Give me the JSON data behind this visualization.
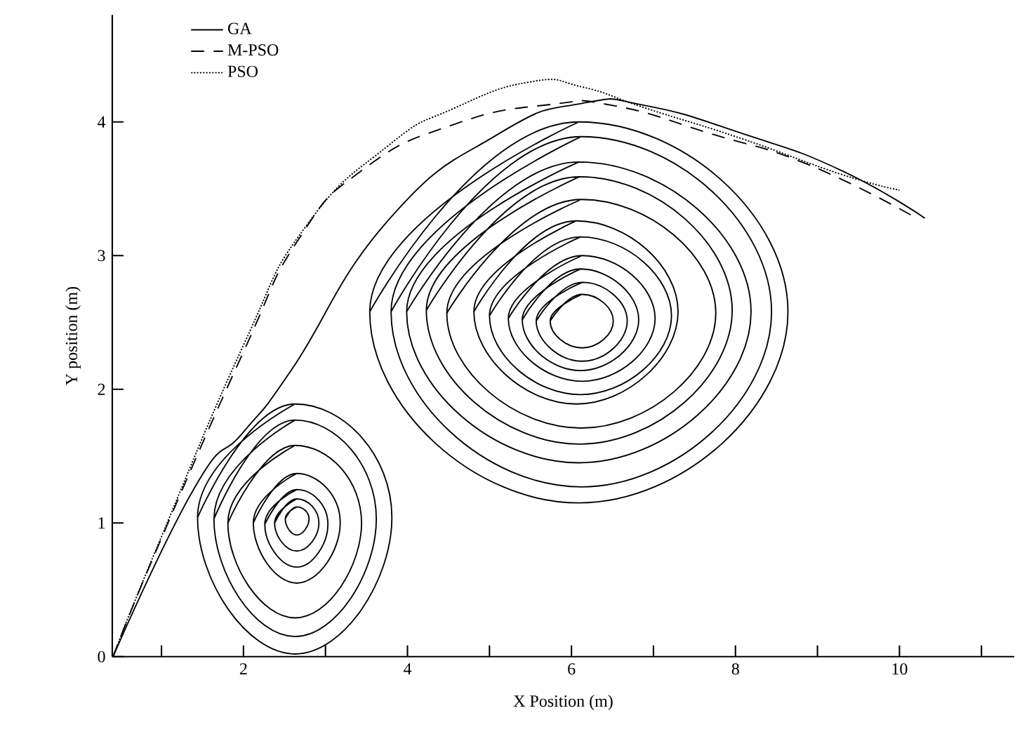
{
  "chart_data": {
    "type": "line",
    "xlabel": "X Position (m)",
    "ylabel": "Y position (m)",
    "xlim": [
      0.4,
      11.4
    ],
    "ylim": [
      0,
      4.8
    ],
    "xticks": [
      {
        "value": 1,
        "label": null
      },
      2,
      {
        "value": 3,
        "label": null
      },
      4,
      {
        "value": 5,
        "label": null
      },
      6,
      {
        "value": 7,
        "label": null
      },
      8,
      {
        "value": 9,
        "label": null
      },
      10,
      {
        "value": 11,
        "label": null
      }
    ],
    "yticks": [
      0,
      1,
      2,
      3,
      4
    ],
    "legend": "top left",
    "marker": "none",
    "grid": false,
    "series": [
      {
        "name": "GA",
        "color": "#000000",
        "line_style": "solid",
        "x": [
          0.41,
          1.4,
          2.0,
          2.58,
          3.76,
          5.11,
          6.14,
          6.92,
          8.1,
          9.28,
          10.31
        ],
        "values": [
          0,
          1.26,
          1.68,
          2.14,
          3.26,
          3.91,
          4.14,
          4.12,
          3.91,
          3.64,
          3.28
        ]
      },
      {
        "name": "M-PSO",
        "color": "#000000",
        "line_style": "dashed",
        "x": [
          0.41,
          0.94,
          2.0,
          2.67,
          3.45,
          4.56,
          5.74,
          6.53,
          7.71,
          8.89,
          10.15
        ],
        "values": [
          0,
          0.8,
          2.28,
          3.12,
          3.64,
          3.98,
          4.13,
          4.12,
          3.91,
          3.68,
          3.3
        ]
      },
      {
        "name": "PSO",
        "color": "#000000",
        "line_style": "dotted",
        "x": [
          0.41,
          0.94,
          2.0,
          2.75,
          3.76,
          4.56,
          5.5,
          6.14,
          6.92,
          8.1,
          9.28,
          10.0
        ],
        "values": [
          0,
          0.81,
          2.33,
          3.21,
          3.82,
          4.1,
          4.3,
          4.26,
          4.1,
          3.87,
          3.61,
          3.49
        ]
      },
      {
        "color": "#000000",
        "line_style": "solid",
        "x": [
          1.44,
          2.63,
          3.81,
          2.63,
          1.44,
          2.63
        ],
        "values": [
          1.04,
          1.89,
          1.04,
          0.02,
          1.04,
          1.89
        ]
      },
      {
        "color": "#000000",
        "line_style": "solid",
        "x": [
          1.64,
          2.63,
          3.62,
          2.63,
          1.64,
          2.63
        ],
        "values": [
          1.03,
          1.77,
          1.03,
          0.15,
          1.03,
          1.77
        ]
      },
      {
        "color": "#000000",
        "line_style": "solid",
        "x": [
          1.81,
          2.63,
          3.44,
          2.63,
          1.81,
          2.63
        ],
        "values": [
          1.0,
          1.58,
          1.0,
          0.29,
          1.0,
          1.58
        ]
      },
      {
        "color": "#000000",
        "line_style": "solid",
        "x": [
          2.12,
          2.65,
          3.18,
          2.65,
          2.12,
          2.65
        ],
        "values": [
          1.0,
          1.37,
          1.0,
          0.55,
          1.0,
          1.37
        ]
      },
      {
        "color": "#000000",
        "line_style": "solid",
        "x": [
          2.26,
          2.65,
          3.03,
          2.65,
          2.26,
          2.65
        ],
        "values": [
          0.99,
          1.25,
          0.99,
          0.67,
          0.99,
          1.25
        ]
      },
      {
        "color": "#000000",
        "line_style": "solid",
        "x": [
          2.38,
          2.65,
          2.92,
          2.65,
          2.38,
          2.65
        ],
        "values": [
          1.0,
          1.18,
          1.0,
          0.79,
          1.0,
          1.18
        ]
      },
      {
        "color": "#000000",
        "line_style": "solid",
        "x": [
          2.51,
          2.65,
          2.8,
          2.65,
          2.51,
          2.65
        ],
        "values": [
          1.03,
          1.12,
          1.03,
          0.91,
          1.03,
          1.12
        ]
      },
      {
        "color": "#000000",
        "line_style": "solid",
        "x": [
          3.54,
          6.09,
          8.64,
          6.09,
          3.54,
          6.09
        ],
        "values": [
          2.58,
          4.0,
          2.58,
          1.15,
          2.58,
          4.0
        ]
      },
      {
        "color": "#000000",
        "line_style": "solid",
        "x": [
          3.8,
          6.12,
          8.44,
          6.12,
          3.8,
          6.12
        ],
        "values": [
          2.58,
          3.89,
          2.58,
          1.27,
          2.58,
          3.89
        ]
      },
      {
        "color": "#000000",
        "line_style": "solid",
        "x": [
          3.99,
          6.09,
          8.19,
          6.09,
          3.99,
          6.09
        ],
        "values": [
          2.58,
          3.7,
          2.58,
          1.45,
          2.58,
          3.7
        ]
      },
      {
        "color": "#000000",
        "line_style": "solid",
        "x": [
          4.23,
          6.1,
          7.96,
          6.1,
          4.23,
          6.1
        ],
        "values": [
          2.59,
          3.59,
          2.59,
          1.59,
          2.59,
          3.59
        ]
      },
      {
        "color": "#000000",
        "line_style": "solid",
        "x": [
          4.48,
          6.12,
          7.76,
          6.12,
          4.48,
          6.12
        ],
        "values": [
          2.57,
          3.42,
          2.57,
          1.71,
          2.57,
          3.42
        ]
      },
      {
        "color": "#000000",
        "line_style": "solid",
        "x": [
          4.81,
          6.06,
          7.3,
          6.06,
          4.81,
          6.06
        ],
        "values": [
          2.58,
          3.26,
          2.58,
          1.89,
          2.58,
          3.26
        ]
      },
      {
        "color": "#000000",
        "line_style": "solid",
        "x": [
          5.0,
          6.11,
          7.22,
          6.11,
          5.0,
          6.11
        ],
        "values": [
          2.55,
          3.14,
          2.55,
          1.96,
          2.55,
          3.14
        ]
      },
      {
        "color": "#000000",
        "line_style": "solid",
        "x": [
          5.23,
          6.13,
          7.02,
          6.13,
          5.23,
          6.13
        ],
        "values": [
          2.53,
          3.0,
          2.53,
          2.06,
          2.53,
          3.0
        ]
      },
      {
        "color": "#000000",
        "line_style": "solid",
        "x": [
          5.4,
          6.11,
          6.82,
          6.11,
          5.4,
          6.11
        ],
        "values": [
          2.52,
          2.9,
          2.52,
          2.14,
          2.52,
          2.9
        ]
      },
      {
        "color": "#000000",
        "line_style": "solid",
        "x": [
          5.57,
          6.13,
          6.68,
          6.13,
          5.57,
          6.13
        ],
        "values": [
          2.51,
          2.8,
          2.51,
          2.21,
          2.51,
          2.8
        ]
      },
      {
        "color": "#000000",
        "line_style": "solid",
        "x": [
          5.74,
          6.13,
          6.51,
          6.13,
          5.74,
          6.13
        ],
        "values": [
          2.51,
          2.71,
          2.51,
          2.31,
          2.51,
          2.71
        ]
      }
    ]
  }
}
